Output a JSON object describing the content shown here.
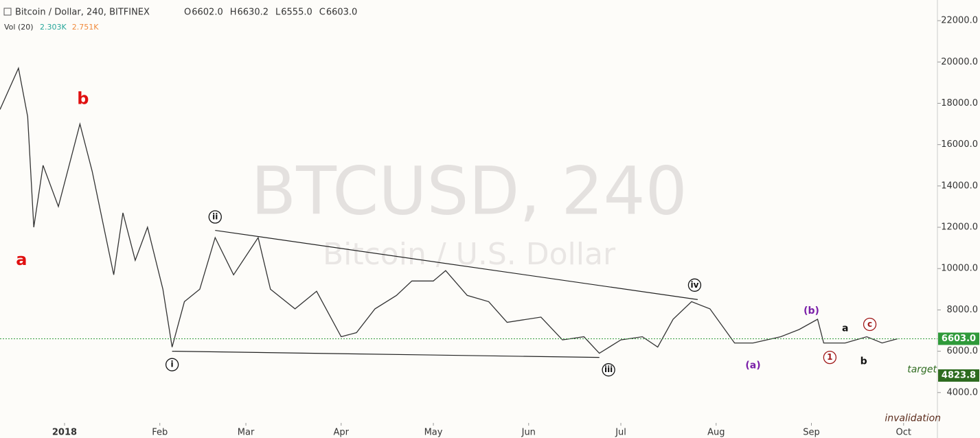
{
  "chart_data": {
    "type": "line",
    "title": "Bitcoin / Dollar, 240, BITFINEX",
    "ohlc": [
      {
        "label": "O",
        "value": "6602.0"
      },
      {
        "label": "H",
        "value": "6630.2"
      },
      {
        "label": "L",
        "value": "6555.0"
      },
      {
        "label": "C",
        "value": "6603.0"
      }
    ],
    "volume_label": "Vol (20)",
    "volume_values": [
      {
        "value": "2.303K",
        "color": "#26a69a"
      },
      {
        "value": "2.751K",
        "color": "#f08a3c"
      }
    ],
    "watermark": "BTCUSD, 240",
    "watermark_subtitle": "Bitcoin / U.S. Dollar",
    "x": [
      -21,
      -15,
      -12,
      -10,
      -7,
      -2,
      5,
      9,
      16,
      19,
      23,
      27,
      32,
      35,
      39,
      44,
      49,
      55,
      63,
      67,
      75,
      82,
      90,
      95,
      101,
      108,
      113,
      120,
      124,
      131,
      138,
      144,
      155,
      162,
      169,
      174,
      181,
      188,
      193,
      198,
      204,
      210,
      218,
      224,
      233,
      239,
      245,
      247,
      254,
      261,
      266,
      271
    ],
    "series": [
      {
        "name": "BTCUSD",
        "color": "#333333",
        "values": [
          17700,
          19700,
          17350,
          12000,
          15000,
          13000,
          17000,
          14700,
          9700,
          12700,
          10400,
          12000,
          9000,
          6200,
          8400,
          9000,
          11500,
          9700,
          11500,
          9000,
          8050,
          8900,
          6700,
          6900,
          8050,
          8700,
          9400,
          9400,
          9900,
          8700,
          8400,
          7400,
          7650,
          6550,
          6700,
          5900,
          6550,
          6700,
          6200,
          7550,
          8400,
          8050,
          6400,
          6400,
          6700,
          7050,
          7550,
          6400,
          6400,
          6700,
          6400,
          6603
        ]
      }
    ],
    "xlim": [
      -21,
      284
    ],
    "xticks": [
      {
        "value": 0,
        "label": "2018"
      },
      {
        "value": 31,
        "label": "Feb"
      },
      {
        "value": 59,
        "label": "Mar"
      },
      {
        "value": 90,
        "label": "Apr"
      },
      {
        "value": 120,
        "label": "May"
      },
      {
        "value": 151,
        "label": "Jun"
      },
      {
        "value": 181,
        "label": "Jul"
      },
      {
        "value": 212,
        "label": "Aug"
      },
      {
        "value": 243,
        "label": "Sep"
      },
      {
        "value": 273,
        "label": "Oct"
      }
    ],
    "ylim": [
      1800,
      23000
    ],
    "yticks": [
      {
        "value": 4000,
        "label": "4000.0"
      },
      {
        "value": 6000,
        "label": "6000.0"
      },
      {
        "value": 8000,
        "label": "8000.0"
      },
      {
        "value": 10000,
        "label": "10000.0"
      },
      {
        "value": 12000,
        "label": "12000.0"
      },
      {
        "value": 14000,
        "label": "14000.0"
      },
      {
        "value": 16000,
        "label": "16000.0"
      },
      {
        "value": 18000,
        "label": "18000.0"
      },
      {
        "value": 20000,
        "label": "20000.0"
      },
      {
        "value": 22000,
        "label": "22000.0"
      }
    ],
    "trendlines": [
      {
        "x": [
          49,
          206
        ],
        "y": [
          11850,
          8500
        ]
      },
      {
        "x": [
          35,
          174
        ],
        "y": [
          6000,
          5700
        ]
      }
    ],
    "price_labels": [
      {
        "value": 6603,
        "label": "6603.0",
        "color": "#2f9a3a"
      },
      {
        "value": 4823.8,
        "label": "4823.8",
        "color": "#2e6b1f"
      }
    ],
    "annotations": [
      {
        "text": "a",
        "x": -14,
        "y": 10400,
        "color": "#e01010",
        "style": "big"
      },
      {
        "text": "b",
        "x": 6,
        "y": 18200,
        "color": "#e01010",
        "style": "big"
      },
      {
        "text": "ii",
        "x": 49,
        "y": 12500,
        "color": "#111111",
        "style": "circle"
      },
      {
        "text": "i",
        "x": 35,
        "y": 5350,
        "color": "#111111",
        "style": "circle"
      },
      {
        "text": "iii",
        "x": 177,
        "y": 5100,
        "color": "#111111",
        "style": "circle"
      },
      {
        "text": "iv",
        "x": 205,
        "y": 9200,
        "color": "#111111",
        "style": "circle"
      },
      {
        "text": "(a)",
        "x": 224,
        "y": 5300,
        "color": "#7a1fa8",
        "style": "bold"
      },
      {
        "text": "(b)",
        "x": 243,
        "y": 7950,
        "color": "#7a1fa8",
        "style": "bold"
      },
      {
        "text": "a",
        "x": 254,
        "y": 7100,
        "color": "#111111",
        "style": "bold"
      },
      {
        "text": "b",
        "x": 260,
        "y": 5500,
        "color": "#111111",
        "style": "bold"
      },
      {
        "text": "1",
        "x": 249,
        "y": 5700,
        "color": "#a01818",
        "style": "circle"
      },
      {
        "text": "c",
        "x": 262,
        "y": 7300,
        "color": "#a01818",
        "style": "circle"
      },
      {
        "text": "target",
        "x": 279,
        "y": 5100,
        "color": "#2e6b1f",
        "style": "italic"
      },
      {
        "text": "invalidation",
        "x": 276,
        "y": 2750,
        "color": "#5a2a1a",
        "style": "italic"
      }
    ]
  }
}
